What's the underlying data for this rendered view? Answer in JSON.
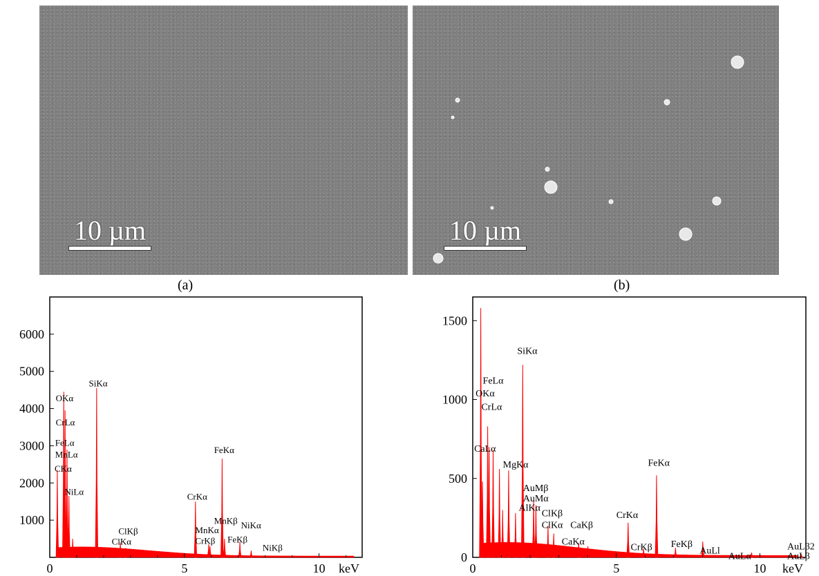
{
  "panels": [
    {
      "label": "(a)",
      "scale_text": "10 µm"
    },
    {
      "label": "(b)",
      "scale_text": "10 µm"
    }
  ],
  "colors": {
    "spectrum": "#ff0000",
    "sem_bg": "#808080"
  },
  "chart_data": [
    {
      "type": "bar",
      "xlabel": "keV",
      "ylabel": "",
      "xlim": [
        0,
        11.6
      ],
      "ylim": [
        0,
        7000
      ],
      "xticks": [
        0,
        5,
        10
      ],
      "yticks": [
        1000,
        2000,
        3000,
        4000,
        5000,
        6000
      ],
      "x": [
        0.28,
        0.52,
        0.57,
        0.64,
        0.71,
        0.85,
        1.74,
        2.62,
        2.82,
        5.41,
        5.9,
        5.95,
        6.4,
        6.49,
        7.06,
        7.48
      ],
      "values": [
        2350,
        4450,
        3950,
        2900,
        1650,
        500,
        4550,
        400,
        250,
        1500,
        350,
        300,
        2650,
        500,
        420,
        180
      ],
      "labels": [
        {
          "text": "CKα",
          "x": 0.18,
          "y": 2300
        },
        {
          "text": "OKα",
          "x": 0.22,
          "y": 4200
        },
        {
          "text": "CrLα",
          "x": 0.22,
          "y": 3550
        },
        {
          "text": "FeLα",
          "x": 0.2,
          "y": 3000
        },
        {
          "text": "MnLα",
          "x": 0.2,
          "y": 2680
        },
        {
          "text": "NiLα",
          "x": 0.55,
          "y": 1680
        },
        {
          "text": "SiKα",
          "x": 1.45,
          "y": 4600
        },
        {
          "text": "ClKβ",
          "x": 2.55,
          "y": 620
        },
        {
          "text": "ClKα",
          "x": 2.3,
          "y": 340
        },
        {
          "text": "CrKα",
          "x": 5.1,
          "y": 1550
        },
        {
          "text": "MnKα",
          "x": 5.4,
          "y": 650
        },
        {
          "text": "CrKβ",
          "x": 5.4,
          "y": 360
        },
        {
          "text": "FeKα",
          "x": 6.1,
          "y": 2800
        },
        {
          "text": "MnKβ",
          "x": 6.1,
          "y": 900
        },
        {
          "text": "NiKα",
          "x": 7.1,
          "y": 780
        },
        {
          "text": "FeKβ",
          "x": 6.6,
          "y": 400
        },
        {
          "text": "NiKβ",
          "x": 7.9,
          "y": 180
        }
      ]
    },
    {
      "type": "bar",
      "xlabel": "keV",
      "ylabel": "",
      "xlim": [
        0,
        11.6
      ],
      "ylim": [
        0,
        1650
      ],
      "xticks": [
        0,
        5,
        10
      ],
      "yticks": [
        0,
        500,
        1000,
        1500
      ],
      "x": [
        0.28,
        0.34,
        0.52,
        0.57,
        0.71,
        0.93,
        1.04,
        1.25,
        1.49,
        1.74,
        2.12,
        2.2,
        2.62,
        2.82,
        3.69,
        4.01,
        5.41,
        5.95,
        6.4,
        7.06,
        8.01,
        9.71,
        11.44
      ],
      "values": [
        1580,
        480,
        830,
        700,
        680,
        560,
        300,
        550,
        280,
        1220,
        360,
        330,
        200,
        150,
        90,
        70,
        220,
        55,
        520,
        60,
        100,
        30,
        20
      ],
      "labels": [
        {
          "text": "FeLα",
          "x": 0.35,
          "y": 1100
        },
        {
          "text": "OKα",
          "x": 0.1,
          "y": 1020
        },
        {
          "text": "CrLα",
          "x": 0.3,
          "y": 935
        },
        {
          "text": "CaLα",
          "x": 0.05,
          "y": 670
        },
        {
          "text": "MgKα",
          "x": 1.05,
          "y": 570
        },
        {
          "text": "SiKα",
          "x": 1.55,
          "y": 1290
        },
        {
          "text": "AlKα",
          "x": 1.6,
          "y": 295
        },
        {
          "text": "AuMβ",
          "x": 1.75,
          "y": 420
        },
        {
          "text": "AuMα",
          "x": 1.75,
          "y": 355
        },
        {
          "text": "ClKβ",
          "x": 2.4,
          "y": 260
        },
        {
          "text": "ClKα",
          "x": 2.4,
          "y": 185
        },
        {
          "text": "CaKβ",
          "x": 3.4,
          "y": 185
        },
        {
          "text": "CaKα",
          "x": 3.1,
          "y": 80
        },
        {
          "text": "CrKα",
          "x": 5.0,
          "y": 250
        },
        {
          "text": "CrKβ",
          "x": 5.5,
          "y": 45
        },
        {
          "text": "FeKα",
          "x": 6.1,
          "y": 580
        },
        {
          "text": "FeKβ",
          "x": 6.9,
          "y": 65
        },
        {
          "text": "AuLl",
          "x": 7.9,
          "y": 25
        },
        {
          "text": "AuLα",
          "x": 8.9,
          "y": -10
        },
        {
          "text": "AuLβ2",
          "x": 10.95,
          "y": 50
        },
        {
          "text": "AuLβ",
          "x": 10.95,
          "y": -12
        }
      ]
    }
  ]
}
